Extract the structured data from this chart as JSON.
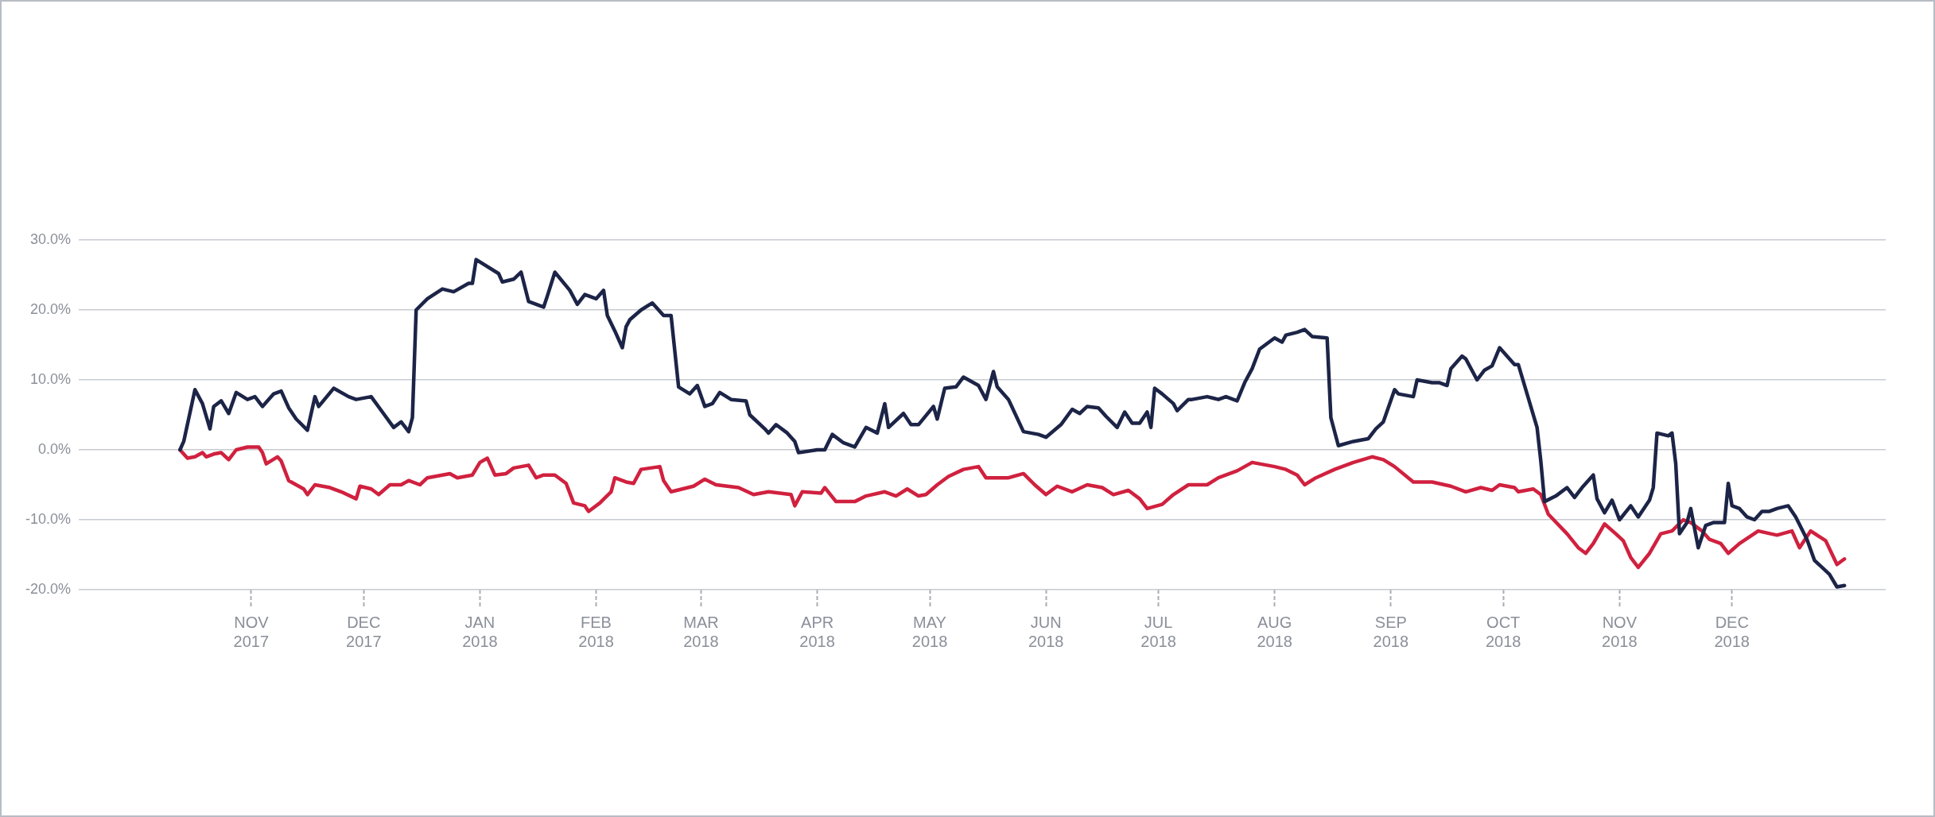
{
  "chart_data": {
    "type": "line",
    "xlim": [
      "2017-09-16",
      "2019-01-11"
    ],
    "xticks": [
      {
        "value": "2017-11-01",
        "label": "NOV 2017"
      },
      {
        "value": "2017-12-01",
        "label": "DEC 2017"
      },
      {
        "value": "2018-01-01",
        "label": "JAN 2018"
      },
      {
        "value": "2018-02-01",
        "label": "FEB 2018"
      },
      {
        "value": "2018-03-01",
        "label": "MAR 2018"
      },
      {
        "value": "2018-04-01",
        "label": "APR 2018"
      },
      {
        "value": "2018-05-01",
        "label": "MAY 2018"
      },
      {
        "value": "2018-06-01",
        "label": "JUN 2018"
      },
      {
        "value": "2018-07-01",
        "label": "JUL 2018"
      },
      {
        "value": "2018-08-01",
        "label": "AUG 2018"
      },
      {
        "value": "2018-09-01",
        "label": "SEP 2018"
      },
      {
        "value": "2018-10-01",
        "label": "OCT 2018"
      },
      {
        "value": "2018-11-01",
        "label": "NOV 2018"
      },
      {
        "value": "2018-12-01",
        "label": "DEC 2018"
      }
    ],
    "ylim": [
      -20,
      30
    ],
    "yticks": [
      {
        "value": -20,
        "label": "-20.0%"
      },
      {
        "value": -10,
        "label": "-10.0%"
      },
      {
        "value": 0,
        "label": "0.0%"
      },
      {
        "value": 10,
        "label": "10.0%"
      },
      {
        "value": 20,
        "label": "20.0%"
      },
      {
        "value": 30,
        "label": "30.0%"
      }
    ],
    "grid": "y",
    "legend": false,
    "marker": "none",
    "line_style": "solid",
    "series": [
      {
        "color": "#1c2447",
        "x": [
          "2017-10-13",
          "2017-10-14",
          "2017-10-17",
          "2017-10-19",
          "2017-10-21",
          "2017-10-22",
          "2017-10-24",
          "2017-10-26",
          "2017-10-28",
          "2017-10-31",
          "2017-11-02",
          "2017-11-04",
          "2017-11-07",
          "2017-11-09",
          "2017-11-11",
          "2017-11-13",
          "2017-11-16",
          "2017-11-18",
          "2017-11-19",
          "2017-11-23",
          "2017-11-27",
          "2017-11-29",
          "2017-12-03",
          "2017-12-06",
          "2017-12-09",
          "2017-12-11",
          "2017-12-13",
          "2017-12-14",
          "2017-12-15",
          "2017-12-18",
          "2017-12-22",
          "2017-12-25",
          "2017-12-29",
          "2017-12-30",
          "2017-12-31",
          "2018-01-06",
          "2018-01-07",
          "2018-01-10",
          "2018-01-12",
          "2018-01-14",
          "2018-01-18",
          "2018-01-19",
          "2018-01-21",
          "2018-01-25",
          "2018-01-27",
          "2018-01-29",
          "2018-02-01",
          "2018-02-03",
          "2018-02-04",
          "2018-02-06",
          "2018-02-08",
          "2018-02-09",
          "2018-02-10",
          "2018-02-13",
          "2018-02-16",
          "2018-02-19",
          "2018-02-21",
          "2018-02-23",
          "2018-02-26",
          "2018-02-28",
          "2018-03-02",
          "2018-03-04",
          "2018-03-06",
          "2018-03-09",
          "2018-03-13",
          "2018-03-14",
          "2018-03-18",
          "2018-03-19",
          "2018-03-21",
          "2018-03-24",
          "2018-03-26",
          "2018-03-27",
          "2018-04-01",
          "2018-04-03",
          "2018-04-05",
          "2018-04-08",
          "2018-04-11",
          "2018-04-14",
          "2018-04-17",
          "2018-04-19",
          "2018-04-20",
          "2018-04-24",
          "2018-04-26",
          "2018-04-28",
          "2018-05-02",
          "2018-05-03",
          "2018-05-05",
          "2018-05-08",
          "2018-05-10",
          "2018-05-14",
          "2018-05-16",
          "2018-05-18",
          "2018-05-19",
          "2018-05-22",
          "2018-05-26",
          "2018-05-30",
          "2018-06-01",
          "2018-06-05",
          "2018-06-08",
          "2018-06-10",
          "2018-06-12",
          "2018-06-15",
          "2018-06-17",
          "2018-06-20",
          "2018-06-22",
          "2018-06-24",
          "2018-06-26",
          "2018-06-28",
          "2018-06-29",
          "2018-06-30",
          "2018-07-02",
          "2018-07-05",
          "2018-07-06",
          "2018-07-09",
          "2018-07-10",
          "2018-07-14",
          "2018-07-17",
          "2018-07-19",
          "2018-07-22",
          "2018-07-24",
          "2018-07-26",
          "2018-07-28",
          "2018-08-01",
          "2018-08-03",
          "2018-08-04",
          "2018-08-07",
          "2018-08-09",
          "2018-08-11",
          "2018-08-15",
          "2018-08-16",
          "2018-08-18",
          "2018-08-22",
          "2018-08-26",
          "2018-08-28",
          "2018-08-30",
          "2018-09-02",
          "2018-09-03",
          "2018-09-07",
          "2018-09-08",
          "2018-09-12",
          "2018-09-14",
          "2018-09-16",
          "2018-09-17",
          "2018-09-20",
          "2018-09-21",
          "2018-09-24",
          "2018-09-26",
          "2018-09-28",
          "2018-09-30",
          "2018-10-04",
          "2018-10-05",
          "2018-10-08",
          "2018-10-10",
          "2018-10-11",
          "2018-10-12",
          "2018-10-15",
          "2018-10-18",
          "2018-10-20",
          "2018-10-22",
          "2018-10-25",
          "2018-10-26",
          "2018-10-28",
          "2018-10-30",
          "2018-11-01",
          "2018-11-04",
          "2018-11-06",
          "2018-11-09",
          "2018-11-10",
          "2018-11-11",
          "2018-11-14",
          "2018-11-15",
          "2018-11-16",
          "2018-11-17",
          "2018-11-19",
          "2018-11-20",
          "2018-11-22",
          "2018-11-24",
          "2018-11-26",
          "2018-11-29",
          "2018-11-30",
          "2018-12-01",
          "2018-12-03",
          "2018-12-05",
          "2018-12-07",
          "2018-12-09",
          "2018-12-11",
          "2018-12-13",
          "2018-12-16",
          "2018-12-18",
          "2018-12-21",
          "2018-12-23",
          "2018-12-27",
          "2018-12-29",
          "2018-12-31"
        ],
        "values": [
          0,
          1.2,
          8.6,
          6.6,
          3,
          6.2,
          7,
          5.2,
          8.2,
          7.2,
          7.6,
          6.2,
          8,
          8.4,
          6,
          4.4,
          2.8,
          7.6,
          6.2,
          8.8,
          7.6,
          7.2,
          7.6,
          5.4,
          3.2,
          4,
          2.6,
          4.6,
          20,
          21.6,
          23,
          22.6,
          23.8,
          23.8,
          27.2,
          25.2,
          24,
          24.4,
          25.4,
          21.2,
          20.4,
          22,
          25.4,
          22.8,
          20.8,
          22.2,
          21.6,
          22.8,
          19.2,
          17,
          14.6,
          17.6,
          18.6,
          20,
          21,
          19.2,
          19.2,
          9,
          8,
          9.2,
          6.2,
          6.6,
          8.2,
          7.2,
          7,
          5,
          3,
          2.4,
          3.6,
          2.4,
          1.2,
          -0.4,
          0,
          0,
          2.2,
          1,
          0.4,
          3.2,
          2.4,
          6.6,
          3.2,
          5.2,
          3.6,
          3.6,
          6.2,
          4.4,
          8.8,
          9,
          10.4,
          9.2,
          7.2,
          11.2,
          9,
          7.2,
          2.6,
          2.2,
          1.8,
          3.6,
          5.8,
          5.2,
          6.2,
          6,
          4.8,
          3.2,
          5.4,
          3.8,
          3.8,
          5.4,
          3.2,
          8.8,
          8,
          6.6,
          5.6,
          7.2,
          7.2,
          7.6,
          7.2,
          7.6,
          7,
          9.6,
          11.6,
          14.4,
          16,
          15.4,
          16.4,
          16.8,
          17.2,
          16.2,
          16,
          4.6,
          0.6,
          1.2,
          1.6,
          3,
          4,
          8.6,
          8,
          7.6,
          10,
          9.6,
          9.6,
          9.2,
          11.6,
          13.4,
          13,
          10,
          11.4,
          12,
          14.6,
          12.2,
          12.2,
          6.8,
          3.2,
          -1.6,
          -7.4,
          -6.6,
          -5.4,
          -6.8,
          -5.4,
          -3.6,
          -7,
          -9,
          -7.2,
          -10,
          -8,
          -9.6,
          -7.2,
          -5.4,
          2.4,
          2,
          2.4,
          -2,
          -12,
          -10.4,
          -8.4,
          -14,
          -10.8,
          -10.4,
          -10.4,
          -4.8,
          -8,
          -8.4,
          -9.6,
          -10,
          -8.8,
          -8.8,
          -8.4,
          -8,
          -9.6,
          -12.8,
          -15.8,
          -17.8,
          -19.6,
          -19.4
        ]
      },
      {
        "color": "#d0213f",
        "x": [
          "2017-10-13",
          "2017-10-15",
          "2017-10-17",
          "2017-10-19",
          "2017-10-20",
          "2017-10-22",
          "2017-10-24",
          "2017-10-26",
          "2017-10-28",
          "2017-10-31",
          "2017-11-03",
          "2017-11-04",
          "2017-11-05",
          "2017-11-08",
          "2017-11-09",
          "2017-11-11",
          "2017-11-15",
          "2017-11-16",
          "2017-11-18",
          "2017-11-22",
          "2017-11-25",
          "2017-11-29",
          "2017-11-30",
          "2017-12-03",
          "2017-12-05",
          "2017-12-08",
          "2017-12-11",
          "2017-12-13",
          "2017-12-16",
          "2017-12-18",
          "2017-12-24",
          "2017-12-26",
          "2017-12-30",
          "2018-01-01",
          "2018-01-03",
          "2018-01-05",
          "2018-01-08",
          "2018-01-10",
          "2018-01-14",
          "2018-01-16",
          "2018-01-18",
          "2018-01-21",
          "2018-01-24",
          "2018-01-26",
          "2018-01-29",
          "2018-01-30",
          "2018-02-02",
          "2018-02-05",
          "2018-02-06",
          "2018-02-09",
          "2018-02-11",
          "2018-02-13",
          "2018-02-18",
          "2018-02-19",
          "2018-02-21",
          "2018-02-27",
          "2018-03-02",
          "2018-03-05",
          "2018-03-11",
          "2018-03-15",
          "2018-03-19",
          "2018-03-25",
          "2018-03-26",
          "2018-03-28",
          "2018-04-02",
          "2018-04-03",
          "2018-04-06",
          "2018-04-11",
          "2018-04-14",
          "2018-04-19",
          "2018-04-22",
          "2018-04-25",
          "2018-04-28",
          "2018-04-30",
          "2018-05-03",
          "2018-05-06",
          "2018-05-10",
          "2018-05-14",
          "2018-05-16",
          "2018-05-22",
          "2018-05-26",
          "2018-05-29",
          "2018-06-01",
          "2018-06-04",
          "2018-06-08",
          "2018-06-12",
          "2018-06-16",
          "2018-06-19",
          "2018-06-23",
          "2018-06-26",
          "2018-06-28",
          "2018-07-02",
          "2018-07-05",
          "2018-07-09",
          "2018-07-14",
          "2018-07-17",
          "2018-07-22",
          "2018-07-26",
          "2018-08-01",
          "2018-08-04",
          "2018-08-07",
          "2018-08-09",
          "2018-08-12",
          "2018-08-17",
          "2018-08-22",
          "2018-08-27",
          "2018-08-30",
          "2018-09-02",
          "2018-09-07",
          "2018-09-12",
          "2018-09-17",
          "2018-09-21",
          "2018-09-25",
          "2018-09-28",
          "2018-09-30",
          "2018-10-04",
          "2018-10-05",
          "2018-10-09",
          "2018-10-11",
          "2018-10-13",
          "2018-10-18",
          "2018-10-21",
          "2018-10-23",
          "2018-10-25",
          "2018-10-28",
          "2018-10-31",
          "2018-11-02",
          "2018-11-04",
          "2018-11-06",
          "2018-11-09",
          "2018-11-12",
          "2018-11-15",
          "2018-11-18",
          "2018-11-20",
          "2018-11-23",
          "2018-11-25",
          "2018-11-28",
          "2018-11-30",
          "2018-12-03",
          "2018-12-08",
          "2018-12-13",
          "2018-12-17",
          "2018-12-19",
          "2018-12-22",
          "2018-12-26",
          "2018-12-29",
          "2018-12-31"
        ],
        "values": [
          0,
          -1.2,
          -1,
          -0.4,
          -1,
          -0.6,
          -0.4,
          -1.4,
          0,
          0.4,
          0.4,
          -0.4,
          -2,
          -1,
          -1.6,
          -4.4,
          -5.6,
          -6.4,
          -5,
          -5.4,
          -6,
          -7,
          -5.2,
          -5.6,
          -6.4,
          -5,
          -5,
          -4.4,
          -5,
          -4,
          -3.4,
          -4,
          -3.6,
          -1.8,
          -1.2,
          -3.6,
          -3.4,
          -2.6,
          -2.2,
          -4,
          -3.6,
          -3.6,
          -4.8,
          -7.6,
          -8,
          -8.8,
          -7.6,
          -6,
          -4,
          -4.6,
          -4.8,
          -2.8,
          -2.4,
          -4.4,
          -6,
          -5.2,
          -4.2,
          -5,
          -5.4,
          -6.4,
          -6,
          -6.4,
          -8,
          -6,
          -6.2,
          -5.4,
          -7.4,
          -7.4,
          -6.6,
          -6,
          -6.6,
          -5.6,
          -6.6,
          -6.4,
          -5,
          -3.8,
          -2.8,
          -2.4,
          -4,
          -4,
          -3.4,
          -5,
          -6.4,
          -5.2,
          -6,
          -5,
          -5.4,
          -6.4,
          -5.8,
          -7,
          -8.4,
          -7.8,
          -6.4,
          -5,
          -5,
          -4,
          -3,
          -1.8,
          -2.4,
          -2.8,
          -3.6,
          -5,
          -4,
          -2.8,
          -1.8,
          -1,
          -1.4,
          -2.4,
          -4.6,
          -4.6,
          -5.2,
          -6,
          -5.4,
          -5.8,
          -5,
          -5.4,
          -6,
          -5.6,
          -6.4,
          -9.2,
          -12,
          -14,
          -14.8,
          -13.4,
          -10.6,
          -12,
          -13,
          -15.4,
          -16.8,
          -14.8,
          -12,
          -11.6,
          -10,
          -10.4,
          -11.6,
          -12.8,
          -13.4,
          -14.8,
          -13.4,
          -11.6,
          -12.2,
          -11.6,
          -14,
          -11.6,
          -13,
          -16.4,
          -15.6
        ]
      }
    ]
  }
}
